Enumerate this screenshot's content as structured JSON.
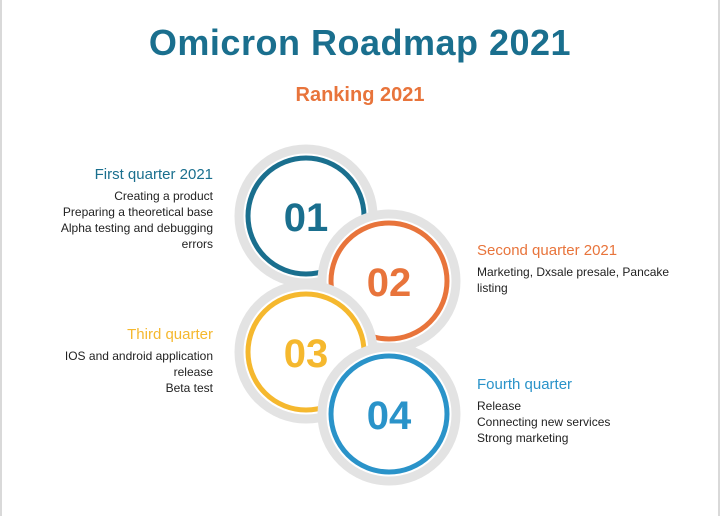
{
  "title": "Omicron Roadmap 2021",
  "subtitle": "Ranking 2021",
  "colors": {
    "title": "#1a6f8e",
    "subtitle": "#e8743b",
    "q1": "#1a6f8e",
    "q2": "#e8743b",
    "q3": "#f5b82e",
    "q4": "#2a93c9",
    "ring_shadow": "#e3e3e3"
  },
  "stages": [
    {
      "number": "01",
      "heading": "First quarter 2021",
      "lines": [
        "Creating a product",
        "Preparing a theoretical base",
        "Alpha testing and debugging",
        "errors"
      ]
    },
    {
      "number": "02",
      "heading": "Second quarter 2021",
      "lines": [
        "Marketing, Dxsale presale, Pancake",
        "listing"
      ]
    },
    {
      "number": "03",
      "heading": "Third quarter",
      "lines": [
        "IOS and android application",
        "release",
        "Beta test"
      ]
    },
    {
      "number": "04",
      "heading": "Fourth quarter",
      "lines": [
        "Release",
        "Connecting new services",
        "Strong marketing"
      ]
    }
  ]
}
